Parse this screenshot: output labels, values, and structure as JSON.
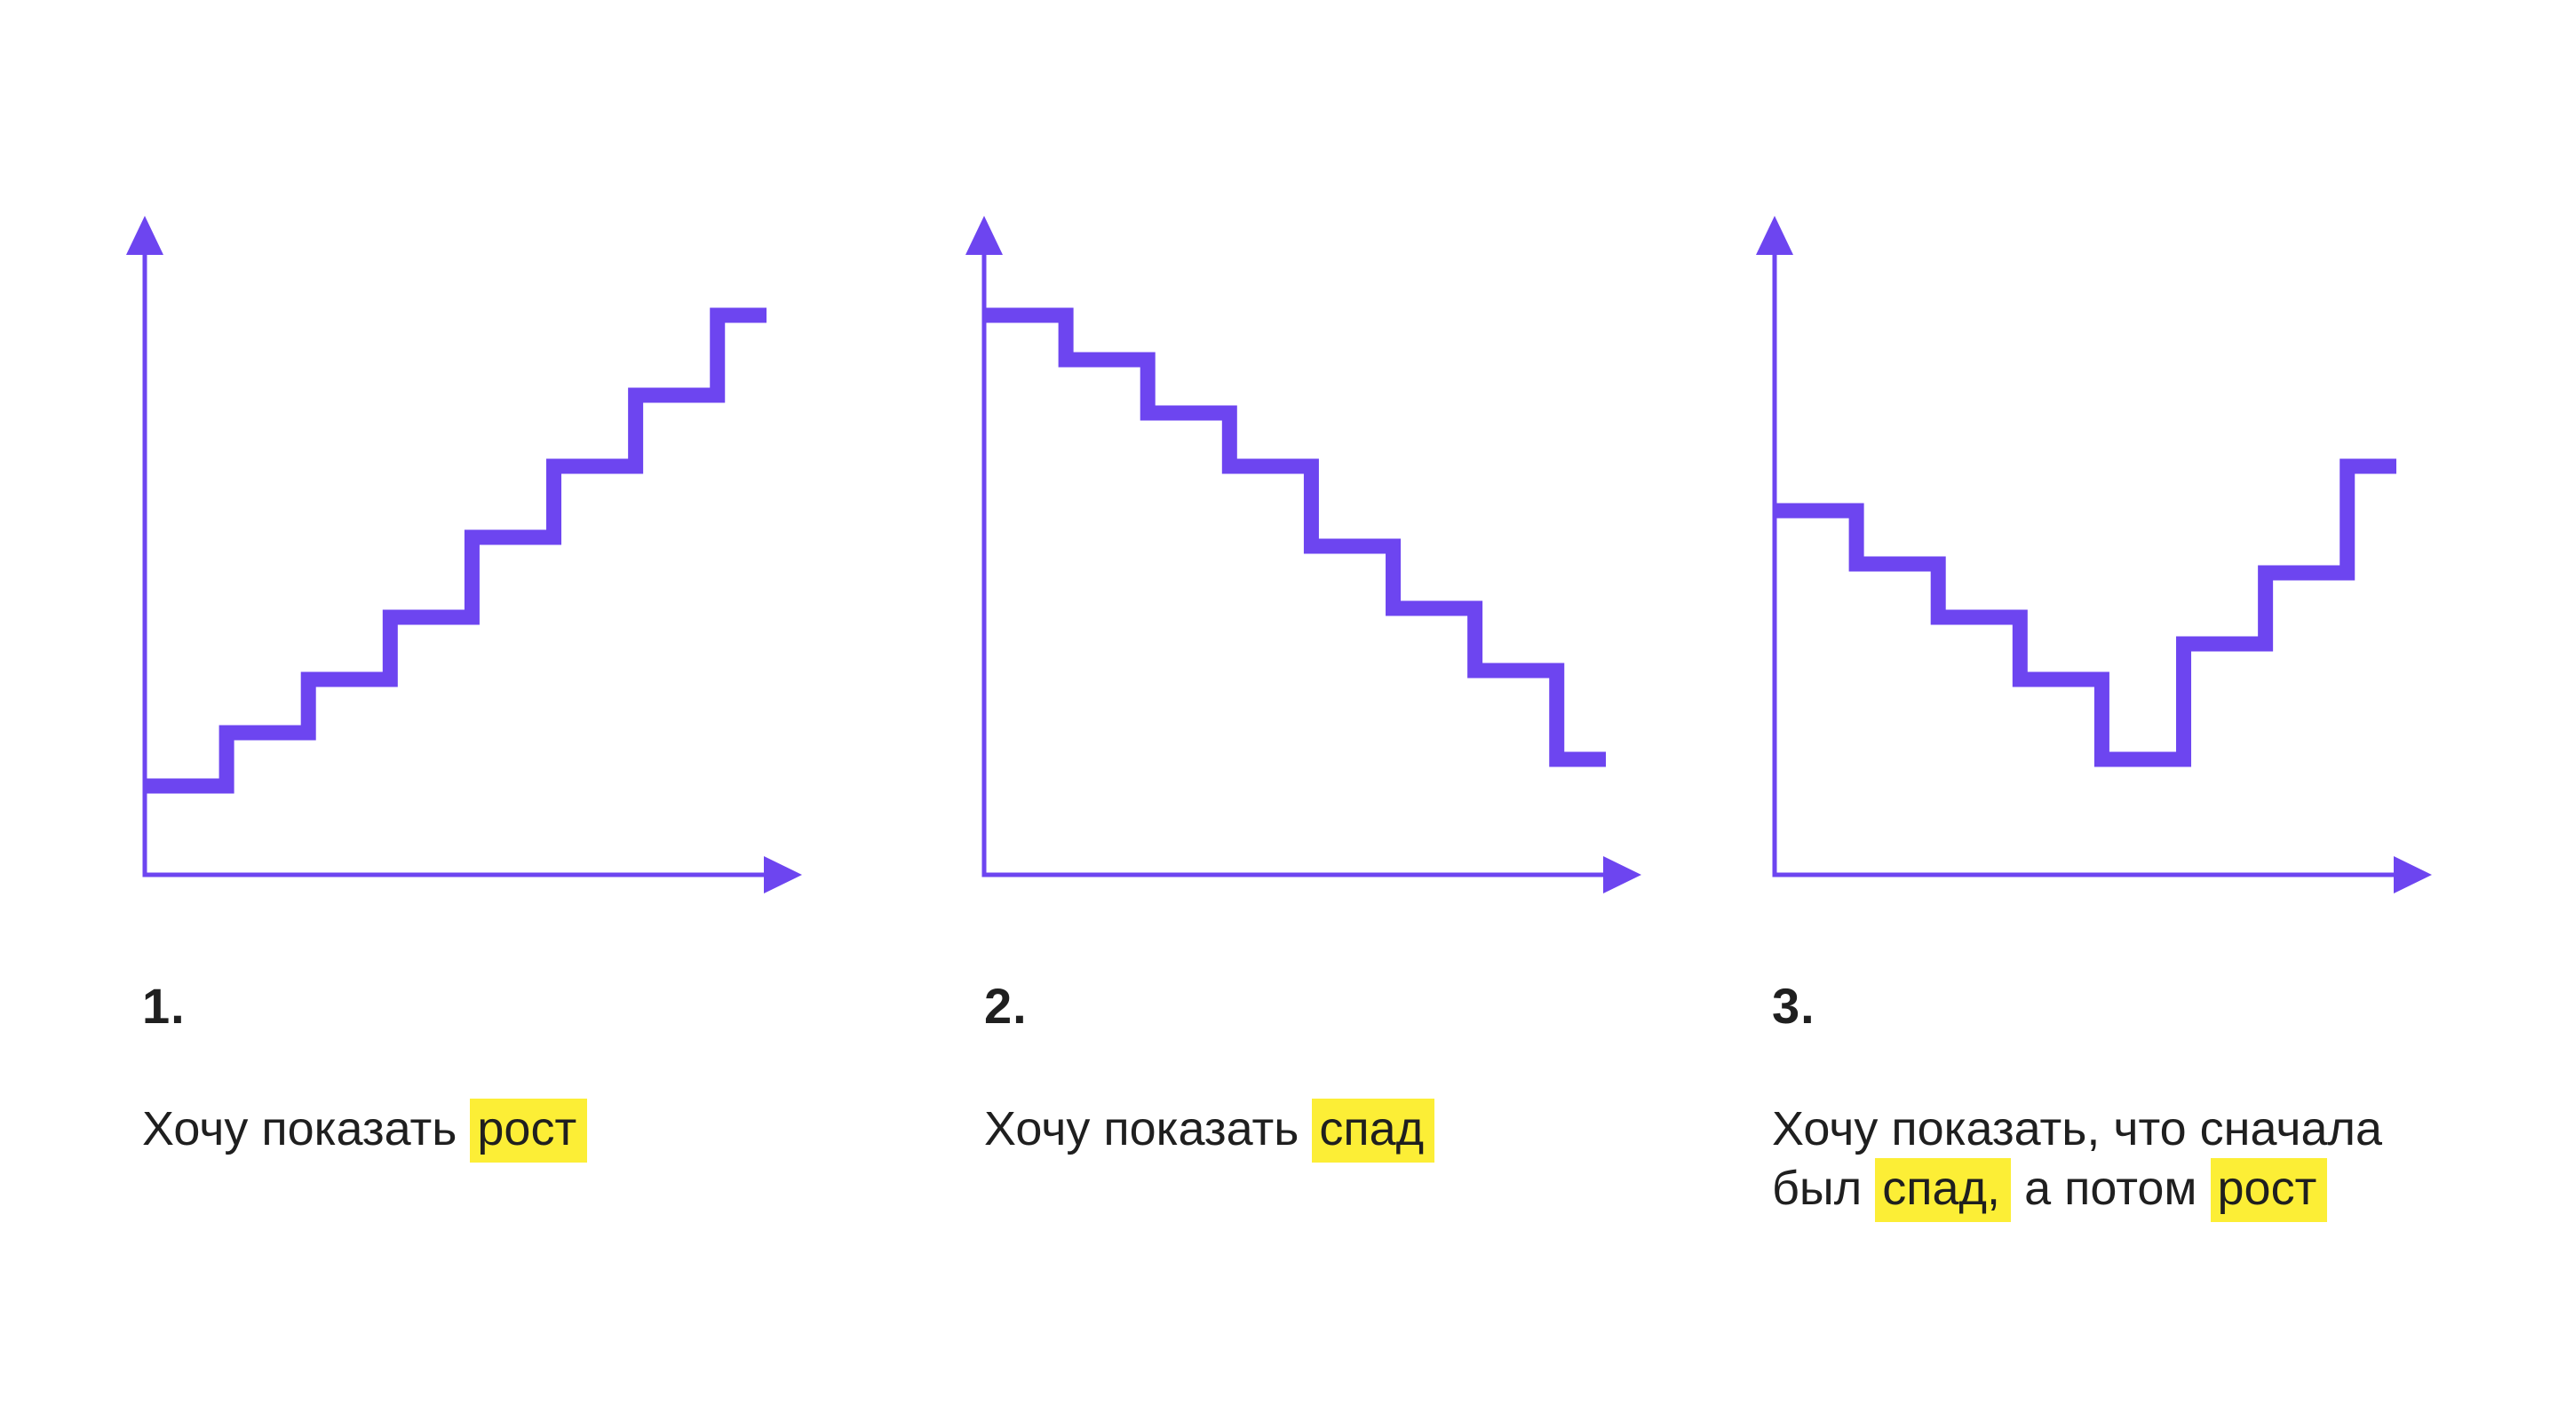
{
  "colors": {
    "line": "#6d45f0",
    "highlight": "#fcee36",
    "text": "#1f1f1f",
    "background": "#ffffff"
  },
  "panels": [
    {
      "number": "1.",
      "caption": {
        "text_before": "Хочу показать",
        "highlight_1": "рост",
        "text_middle": "",
        "highlight_2": ""
      }
    },
    {
      "number": "2.",
      "caption": {
        "text_before": "Хочу показать",
        "highlight_1": "спад",
        "text_middle": "",
        "highlight_2": ""
      }
    },
    {
      "number": "3.",
      "caption": {
        "text_before": "Хочу показать, что сначала был",
        "highlight_1": "спад,",
        "text_middle": "а потом",
        "highlight_2": "рост"
      }
    }
  ],
  "chart_data": [
    {
      "type": "line",
      "step": true,
      "title": "",
      "xlabel": "",
      "ylabel": "",
      "x": [
        0,
        1,
        2,
        3,
        4,
        5,
        6,
        7
      ],
      "values": [
        1.0,
        1.6,
        2.2,
        2.9,
        3.8,
        4.6,
        5.4,
        6.3
      ],
      "xlim": [
        0,
        7.6
      ],
      "ylim": [
        0,
        7.4
      ]
    },
    {
      "type": "line",
      "step": true,
      "title": "",
      "xlabel": "",
      "ylabel": "",
      "x": [
        0,
        1,
        2,
        3,
        4,
        5,
        6,
        7
      ],
      "values": [
        6.3,
        5.8,
        5.2,
        4.6,
        3.7,
        3.0,
        2.3,
        1.3
      ],
      "xlim": [
        0,
        7.6
      ],
      "ylim": [
        0,
        7.4
      ]
    },
    {
      "type": "line",
      "step": true,
      "title": "",
      "xlabel": "",
      "ylabel": "",
      "x": [
        0,
        1,
        2,
        3,
        4,
        5,
        6,
        7
      ],
      "values": [
        4.1,
        3.5,
        2.9,
        2.2,
        1.3,
        2.6,
        3.4,
        4.6
      ],
      "xlim": [
        0,
        7.6
      ],
      "ylim": [
        0,
        7.4
      ]
    }
  ]
}
